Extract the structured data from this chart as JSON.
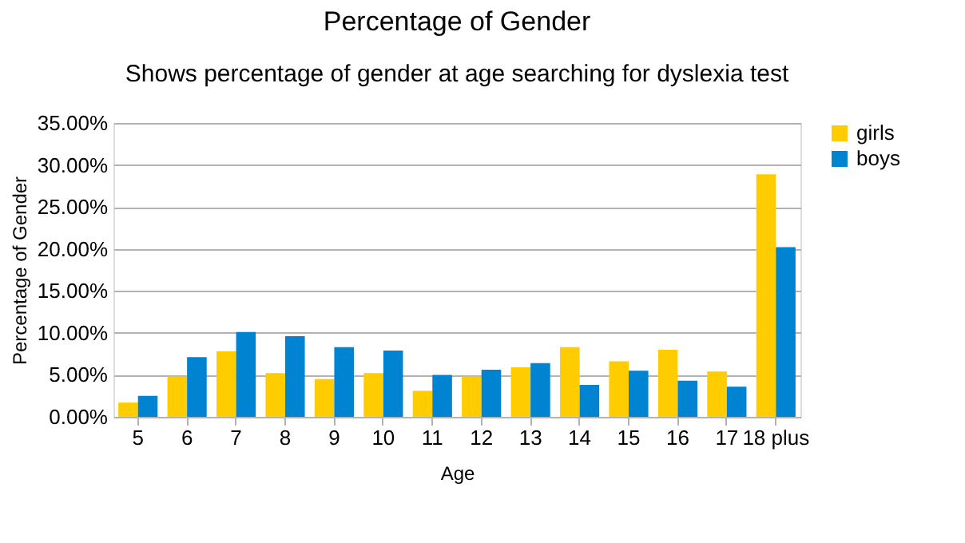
{
  "chart_data": {
    "type": "bar",
    "title": "Percentage of Gender",
    "subtitle": "Shows percentage of gender at age searching for dyslexia test",
    "xlabel": "Age",
    "ylabel": "Percentage of Gender",
    "categories": [
      "5",
      "6",
      "7",
      "8",
      "9",
      "10",
      "11",
      "12",
      "13",
      "14",
      "15",
      "16",
      "17",
      "18 plus"
    ],
    "series": [
      {
        "name": "girls",
        "color": "#ffcc00",
        "values": [
          1.7,
          4.8,
          7.8,
          5.2,
          4.5,
          5.2,
          3.1,
          4.8,
          5.9,
          8.3,
          6.6,
          8.0,
          5.4,
          28.9
        ]
      },
      {
        "name": "boys",
        "color": "#0083d1",
        "values": [
          2.5,
          7.1,
          10.1,
          9.6,
          8.3,
          7.9,
          5.0,
          5.6,
          6.4,
          3.8,
          5.5,
          4.3,
          3.6,
          20.2
        ]
      }
    ],
    "ylim": [
      0,
      35
    ],
    "yticks": [
      {
        "value": 0,
        "label": "0.00%"
      },
      {
        "value": 5,
        "label": "5.00%"
      },
      {
        "value": 10,
        "label": "10.00%"
      },
      {
        "value": 15,
        "label": "15.00%"
      },
      {
        "value": 20,
        "label": "20.00%"
      },
      {
        "value": 25,
        "label": "25.00%"
      },
      {
        "value": 30,
        "label": "30.00%"
      },
      {
        "value": 35,
        "label": "35.00%"
      }
    ],
    "grid": "y",
    "legend": "right"
  }
}
